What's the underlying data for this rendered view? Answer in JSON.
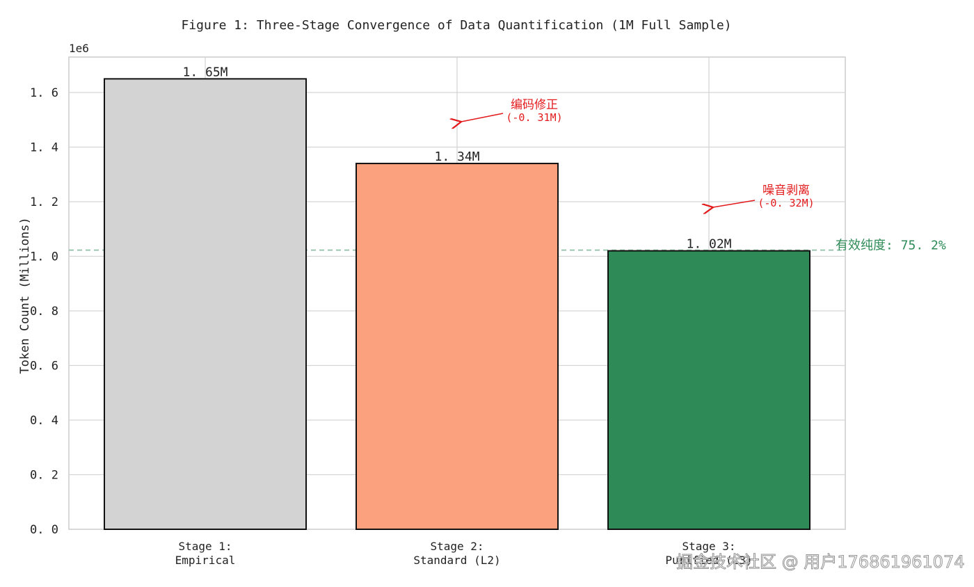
{
  "chart_data": {
    "type": "bar",
    "title": "Figure 1: Three-Stage Convergence of Data Quantification (1M Full Sample)",
    "xlabel": "",
    "ylabel": "Token Count (Millions)",
    "y_offset_label": "1e6",
    "ylim": [
      0,
      1.73
    ],
    "yticks": [
      "0.0",
      "0.2",
      "0.4",
      "0.6",
      "0.8",
      "1.0",
      "1.2",
      "1.4",
      "1.6"
    ],
    "grid": true,
    "categories": [
      "Stage 1:\nEmpirical",
      "Stage 2:\nStandard (L2)",
      "Stage 3:\nPurified (L3)"
    ],
    "category_lines": [
      [
        "Stage 1:",
        "Empirical"
      ],
      [
        "Stage 2:",
        "Standard (L2)"
      ],
      [
        "Stage 3:",
        "Purified (L3)"
      ]
    ],
    "values": [
      1650000,
      1340000,
      1020000
    ],
    "value_labels": [
      "1.65M",
      "1.34M",
      "1.02M"
    ],
    "colors": [
      "#d3d3d3",
      "#fca17d",
      "#2e8b57"
    ],
    "annotations": [
      {
        "text": "编码修正",
        "subtext": "(-0.31M)",
        "color": "#e31a1c"
      },
      {
        "text": "噪音剥离",
        "subtext": "(-0.32M)",
        "color": "#e31a1c"
      }
    ],
    "reference_line": {
      "value": 1020000,
      "label": "有效纯度: 75.2%",
      "color": "#2e8b57",
      "style": "dashed"
    }
  },
  "watermark": "掘金技术社区 @ 用户176861961074"
}
